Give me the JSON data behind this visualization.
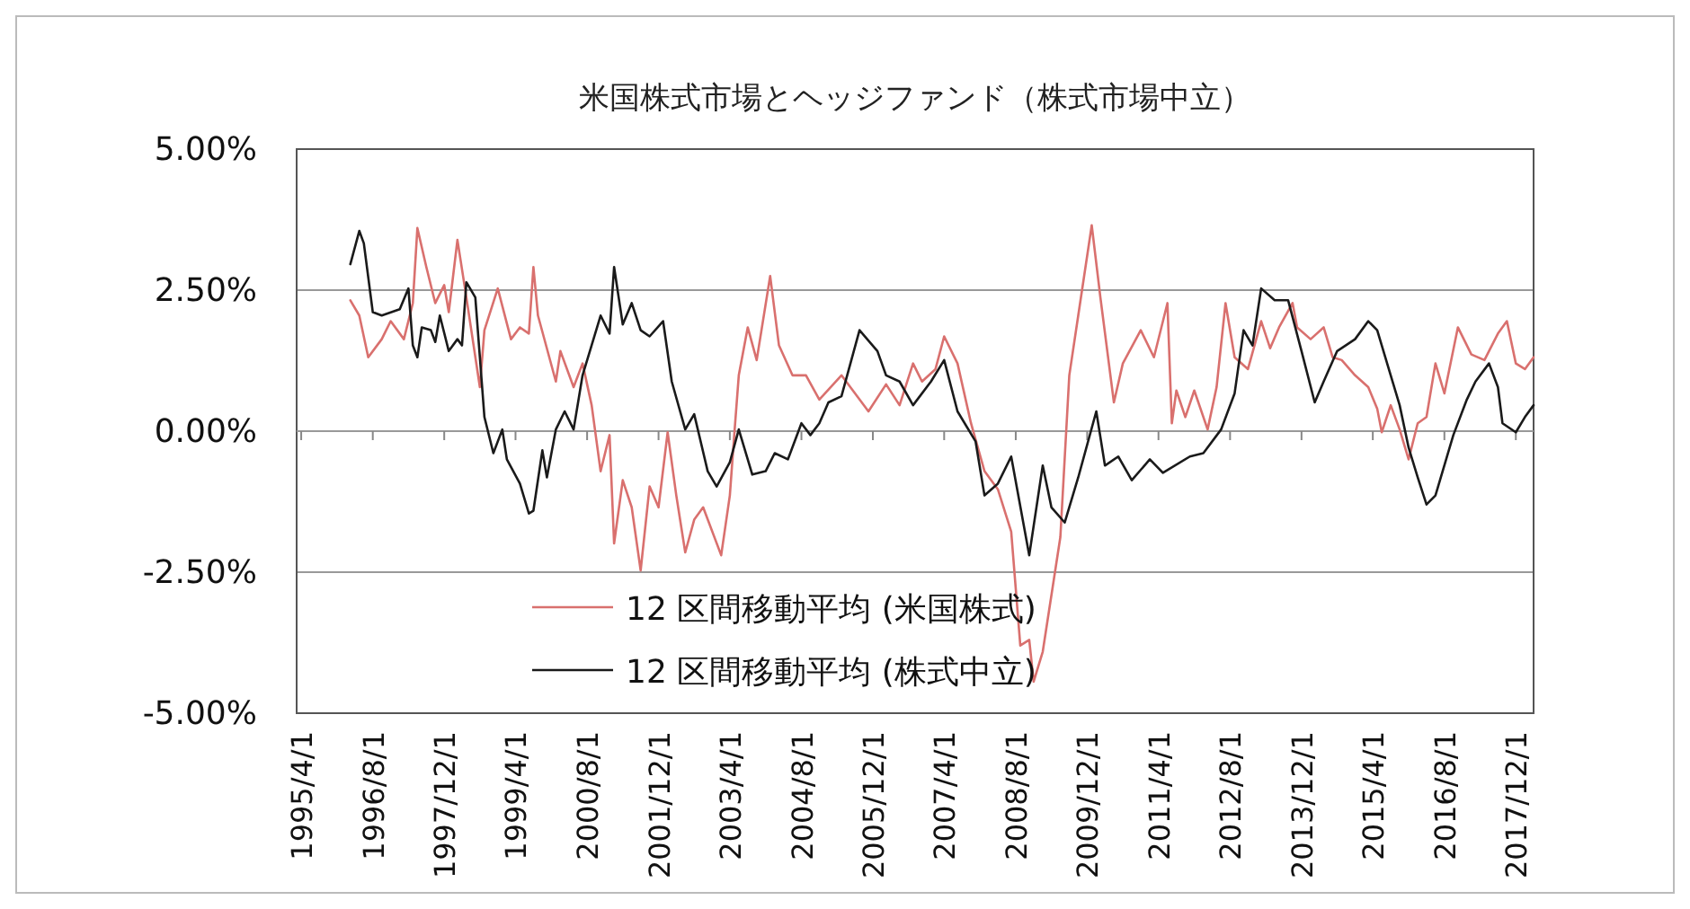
{
  "chart_data": {
    "type": "line",
    "title": "米国株式市場とヘッジファンド（株式市場中立）",
    "xlim": [
      "1995-03-01",
      "2018-04-01"
    ],
    "xticks": [
      {
        "value": "1995-04-01",
        "label": "1995/4/1"
      },
      {
        "value": "1996-08-01",
        "label": "1996/8/1"
      },
      {
        "value": "1997-12-01",
        "label": "1997/12/1"
      },
      {
        "value": "1999-04-01",
        "label": "1999/4/1"
      },
      {
        "value": "2000-08-01",
        "label": "2000/8/1"
      },
      {
        "value": "2001-12-01",
        "label": "2001/12/1"
      },
      {
        "value": "2003-04-01",
        "label": "2003/4/1"
      },
      {
        "value": "2004-08-01",
        "label": "2004/8/1"
      },
      {
        "value": "2005-12-01",
        "label": "2005/12/1"
      },
      {
        "value": "2007-04-01",
        "label": "2007/4/1"
      },
      {
        "value": "2008-08-01",
        "label": "2008/8/1"
      },
      {
        "value": "2009-12-01",
        "label": "2009/12/1"
      },
      {
        "value": "2011-04-01",
        "label": "2011/4/1"
      },
      {
        "value": "2012-08-01",
        "label": "2012/8/1"
      },
      {
        "value": "2013-12-01",
        "label": "2013/12/1"
      },
      {
        "value": "2015-04-01",
        "label": "2015/4/1"
      },
      {
        "value": "2016-08-01",
        "label": "2016/8/1"
      },
      {
        "value": "2017-12-01",
        "label": "2017/12/1"
      }
    ],
    "ylim": [
      -5,
      5
    ],
    "yticks": [
      {
        "value": -5,
        "label": "-5.00%"
      },
      {
        "value": -2.5,
        "label": "-2.50%"
      },
      {
        "value": 0,
        "label": "0.00%"
      },
      {
        "value": 2.5,
        "label": "2.50%"
      },
      {
        "value": 5,
        "label": "5.00%"
      }
    ],
    "grid": "y",
    "legend": "bottom",
    "line_style": "solid",
    "series": [
      {
        "name": "12 区間移動平均 (米国株式)",
        "color": "#d9706e",
        "x": [
          "1996-03",
          "1996-05",
          "1996-07",
          "1996-10",
          "1996-12",
          "1997-03",
          "1997-05",
          "1997-06",
          "1997-08",
          "1997-10",
          "1997-12",
          "1998-01",
          "1998-03",
          "1998-05",
          "1998-08",
          "1998-09",
          "1998-12",
          "1999-03",
          "1999-05",
          "1999-07",
          "1999-08",
          "1999-09",
          "2000-01",
          "2000-02",
          "2000-05",
          "2000-07",
          "2000-09",
          "2000-11",
          "2001-01",
          "2001-02",
          "2001-04",
          "2001-06",
          "2001-08",
          "2001-10",
          "2001-12",
          "2002-02",
          "2002-04",
          "2002-06",
          "2002-08",
          "2002-10",
          "2003-02",
          "2003-04",
          "2003-05",
          "2003-06",
          "2003-08",
          "2003-10",
          "2004-01",
          "2004-03",
          "2004-06",
          "2004-09",
          "2004-12",
          "2005-05",
          "2005-11",
          "2006-03",
          "2006-06",
          "2006-09",
          "2006-11",
          "2007-02",
          "2007-04",
          "2007-07",
          "2007-10",
          "2008-01",
          "2008-04",
          "2008-07",
          "2008-09",
          "2008-11",
          "2008-12",
          "2009-02",
          "2009-06",
          "2009-08",
          "2009-10",
          "2010-01",
          "2010-03",
          "2010-06",
          "2010-08",
          "2010-12",
          "2011-03",
          "2011-06",
          "2011-07",
          "2011-08",
          "2011-10",
          "2011-12",
          "2012-03",
          "2012-05",
          "2012-07",
          "2012-09",
          "2012-12",
          "2013-03",
          "2013-05",
          "2013-07",
          "2013-10",
          "2013-11",
          "2014-02",
          "2014-05",
          "2014-07",
          "2014-09",
          "2014-12",
          "2015-03",
          "2015-05",
          "2015-06",
          "2015-08",
          "2015-10",
          "2015-12",
          "2016-02",
          "2016-04",
          "2016-06",
          "2016-08",
          "2016-11",
          "2017-02",
          "2017-05",
          "2017-08",
          "2017-10",
          "2017-12",
          "2018-02",
          "2018-04"
        ],
        "values": [
          2.32,
          2.05,
          1.31,
          1.63,
          1.95,
          1.63,
          2.27,
          3.6,
          2.91,
          2.27,
          2.59,
          2.11,
          3.39,
          2.37,
          0.78,
          1.79,
          2.53,
          1.63,
          1.84,
          1.73,
          2.91,
          2.05,
          0.88,
          1.42,
          0.78,
          1.2,
          0.46,
          -0.71,
          -0.07,
          -1.99,
          -0.87,
          -1.35,
          -2.47,
          -0.98,
          -1.35,
          -0.02,
          -1.14,
          -2.15,
          -1.57,
          -1.35,
          -2.2,
          -1.14,
          -0.07,
          0.99,
          1.84,
          1.26,
          2.75,
          1.52,
          0.99,
          0.99,
          0.56,
          0.99,
          0.35,
          0.83,
          0.46,
          1.2,
          0.88,
          1.1,
          1.68,
          1.2,
          0.14,
          -0.71,
          -1.03,
          -1.78,
          -3.8,
          -3.7,
          -4.44,
          -3.91,
          -1.88,
          0.99,
          2.05,
          3.65,
          2.37,
          0.51,
          1.2,
          1.79,
          1.31,
          2.27,
          0.14,
          0.72,
          0.25,
          0.72,
          0.03,
          0.78,
          2.27,
          1.31,
          1.1,
          1.95,
          1.47,
          1.84,
          2.27,
          1.84,
          1.63,
          1.84,
          1.31,
          1.26,
          0.99,
          0.78,
          0.4,
          -0.02,
          0.46,
          0.03,
          -0.5,
          0.14,
          0.25,
          1.2,
          0.67,
          1.84,
          1.36,
          1.26,
          1.73,
          1.95,
          1.2,
          1.1,
          1.31
        ]
      },
      {
        "name": "12 区間移動平均 (株式中立)",
        "color": "#1a1a1a",
        "x": [
          "1996-03",
          "1996-05",
          "1996-06",
          "1996-08",
          "1996-10",
          "1997-02",
          "1997-04",
          "1997-05",
          "1997-06",
          "1997-07",
          "1997-09",
          "1997-10",
          "1997-11",
          "1998-01",
          "1998-03",
          "1998-04",
          "1998-05",
          "1998-07",
          "1998-09",
          "1998-11",
          "1999-01",
          "1999-02",
          "1999-05",
          "1999-07",
          "1999-08",
          "1999-10",
          "1999-11",
          "2000-01",
          "2000-03",
          "2000-05",
          "2000-07",
          "2000-11",
          "2001-01",
          "2001-02",
          "2001-04",
          "2001-06",
          "2001-08",
          "2001-10",
          "2002-01",
          "2002-03",
          "2002-06",
          "2002-08",
          "2002-11",
          "2003-01",
          "2003-04",
          "2003-06",
          "2003-09",
          "2003-12",
          "2004-02",
          "2004-05",
          "2004-08",
          "2004-10",
          "2004-12",
          "2005-02",
          "2005-05",
          "2005-09",
          "2006-01",
          "2006-03",
          "2006-06",
          "2006-09",
          "2007-01",
          "2007-04",
          "2007-07",
          "2007-11",
          "2008-01",
          "2008-04",
          "2008-07",
          "2008-11",
          "2009-02",
          "2009-04",
          "2009-07",
          "2009-10",
          "2010-02",
          "2010-04",
          "2010-07",
          "2010-10",
          "2011-02",
          "2011-05",
          "2011-11",
          "2012-02",
          "2012-06",
          "2012-09",
          "2012-11",
          "2013-01",
          "2013-03",
          "2013-06",
          "2013-09",
          "2013-12",
          "2014-03",
          "2014-05",
          "2014-08",
          "2014-12",
          "2015-03",
          "2015-05",
          "2015-08",
          "2015-10",
          "2015-12",
          "2016-02",
          "2016-04",
          "2016-06",
          "2016-10",
          "2017-01",
          "2017-03",
          "2017-06",
          "2017-08",
          "2017-09",
          "2017-12",
          "2018-02",
          "2018-04"
        ],
        "values": [
          2.96,
          3.55,
          3.33,
          2.11,
          2.05,
          2.16,
          2.53,
          1.52,
          1.31,
          1.84,
          1.79,
          1.58,
          2.05,
          1.42,
          1.63,
          1.52,
          2.64,
          2.37,
          0.25,
          -0.39,
          0.03,
          -0.5,
          -0.93,
          -1.46,
          -1.41,
          -0.34,
          -0.82,
          0.03,
          0.35,
          0.03,
          0.99,
          2.05,
          1.73,
          2.91,
          1.89,
          2.27,
          1.79,
          1.68,
          1.95,
          0.88,
          0.03,
          0.3,
          -0.71,
          -0.98,
          -0.55,
          0.03,
          -0.77,
          -0.71,
          -0.39,
          -0.5,
          0.14,
          -0.07,
          0.14,
          0.51,
          0.62,
          1.79,
          1.42,
          0.99,
          0.88,
          0.46,
          0.88,
          1.26,
          0.35,
          -0.18,
          -1.14,
          -0.93,
          -0.45,
          -2.2,
          -0.61,
          -1.35,
          -1.62,
          -0.82,
          0.35,
          -0.61,
          -0.45,
          -0.87,
          -0.5,
          -0.74,
          -0.45,
          -0.39,
          0.03,
          0.67,
          1.79,
          1.52,
          2.53,
          2.32,
          2.32,
          1.42,
          0.51,
          0.88,
          1.42,
          1.63,
          1.95,
          1.79,
          0.99,
          0.46,
          -0.29,
          -0.82,
          -1.3,
          -1.14,
          -0.07,
          0.56,
          0.88,
          1.2,
          0.78,
          0.14,
          -0.02,
          0.25,
          0.46
        ]
      }
    ]
  }
}
